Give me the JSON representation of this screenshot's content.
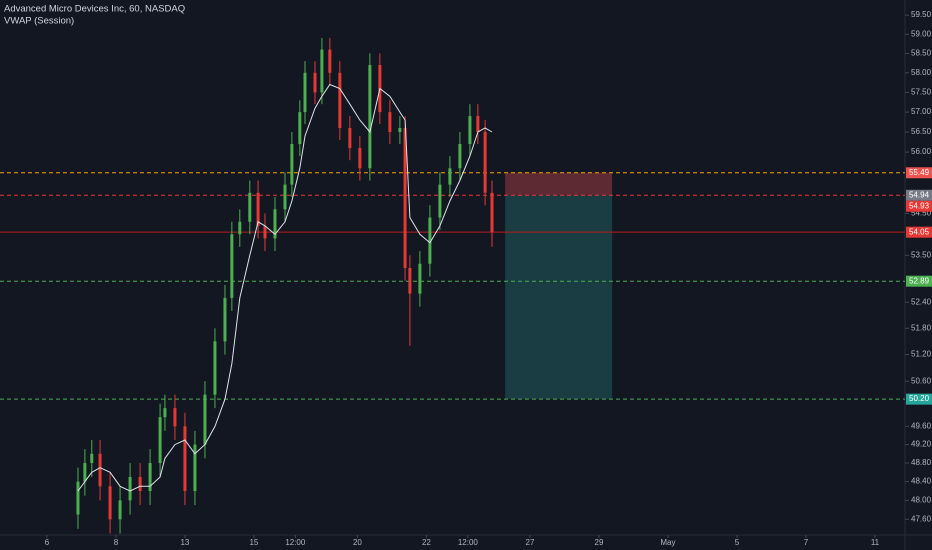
{
  "chart_data": {
    "type": "candlestick",
    "title": "Advanced Micro Devices Inc, 60, NASDAQ",
    "subtitle": "VWAP (Session)",
    "log_scale": true,
    "up_color": "#4caf50",
    "down_color": "#e53935",
    "xlim": [
      -1.36,
      24.87
    ],
    "ylim": [
      47.27,
      59.9
    ],
    "xticks": [
      {
        "value": 0,
        "label": "6"
      },
      {
        "value": 2,
        "label": "8"
      },
      {
        "value": 4,
        "label": "13"
      },
      {
        "value": 6,
        "label": "15"
      },
      {
        "value": 7.2,
        "label": "12:00"
      },
      {
        "value": 9,
        "label": "20"
      },
      {
        "value": 11,
        "label": "22"
      },
      {
        "value": 12.2,
        "label": "12:00"
      },
      {
        "value": 14,
        "label": "27"
      },
      {
        "value": 16,
        "label": "29"
      },
      {
        "value": 18,
        "label": "May"
      },
      {
        "value": 20,
        "label": "5"
      },
      {
        "value": 22,
        "label": "7"
      },
      {
        "value": 24,
        "label": "11"
      }
    ],
    "yticks": [
      {
        "value": 59.5,
        "label": "59.50"
      },
      {
        "value": 59,
        "label": "59.00"
      },
      {
        "value": 58.5,
        "label": "58.50"
      },
      {
        "value": 58,
        "label": "58.00"
      },
      {
        "value": 57.5,
        "label": "57.50"
      },
      {
        "value": 57,
        "label": "57.00"
      },
      {
        "value": 56.5,
        "label": "56.50"
      },
      {
        "value": 56,
        "label": "56.00"
      },
      {
        "value": 54.5,
        "label": "54.50"
      },
      {
        "value": 53.5,
        "label": "53.50"
      },
      {
        "value": 52.4,
        "label": "52.40"
      },
      {
        "value": 51.8,
        "label": "51.80"
      },
      {
        "value": 51.2,
        "label": "51.20"
      },
      {
        "value": 50.6,
        "label": "50.60"
      },
      {
        "value": 49.6,
        "label": "49.60"
      },
      {
        "value": 49.2,
        "label": "49.20"
      },
      {
        "value": 48.8,
        "label": "48.80"
      },
      {
        "value": 48.4,
        "label": "48.40"
      },
      {
        "value": 48,
        "label": "48.00"
      },
      {
        "value": 47.6,
        "label": "47.60"
      }
    ],
    "x": [
      0.9,
      1.1,
      1.3,
      1.54,
      1.83,
      2.12,
      2.41,
      2.7,
      2.99,
      3.28,
      3.42,
      3.71,
      4.0,
      4.29,
      4.58,
      4.87,
      5.16,
      5.36,
      5.59,
      5.88,
      6.12,
      6.32,
      6.61,
      6.9,
      7.1,
      7.33,
      7.48,
      7.77,
      7.97,
      8.2,
      8.49,
      8.78,
      9.07,
      9.36,
      9.65,
      9.94,
      10.23,
      10.38,
      10.52,
      10.81,
      11.1,
      11.39,
      11.68,
      11.97,
      12.26,
      12.49,
      12.7,
      12.9
    ],
    "open": [
      47.7,
      48.4,
      48.8,
      49.0,
      48.3,
      47.6,
      48.0,
      48.5,
      48.2,
      48.8,
      49.8,
      50.0,
      49.6,
      48.2,
      49.2,
      50.3,
      51.5,
      52.5,
      54.0,
      54.3,
      55.0,
      54.2,
      53.9,
      54.6,
      55.2,
      56.2,
      57.0,
      58.0,
      57.5,
      58.6,
      58.0,
      56.6,
      56.1,
      55.6,
      58.2,
      57.0,
      56.5,
      56.6,
      53.2,
      52.6,
      53.3,
      54.4,
      55.2,
      55.6,
      56.2,
      56.9,
      56.5,
      55.0
    ],
    "high": [
      48.7,
      49.1,
      49.3,
      49.3,
      48.6,
      48.3,
      48.8,
      48.8,
      49.1,
      50.1,
      50.3,
      50.3,
      49.9,
      49.5,
      50.6,
      51.8,
      52.8,
      54.3,
      54.6,
      55.3,
      55.3,
      54.5,
      54.9,
      55.5,
      56.5,
      57.3,
      58.3,
      58.3,
      58.9,
      58.9,
      58.3,
      56.9,
      56.4,
      58.5,
      58.5,
      57.3,
      56.9,
      56.9,
      53.5,
      53.6,
      54.7,
      55.5,
      55.9,
      56.5,
      57.2,
      57.2,
      56.8,
      55.3
    ],
    "low": [
      47.4,
      48.1,
      48.5,
      48.0,
      47.3,
      47.3,
      47.7,
      47.9,
      47.9,
      48.5,
      49.5,
      49.3,
      47.9,
      47.9,
      48.9,
      50.0,
      51.2,
      52.2,
      53.7,
      54.0,
      53.9,
      53.6,
      53.6,
      54.3,
      54.9,
      55.9,
      56.7,
      57.2,
      57.2,
      57.7,
      56.3,
      55.8,
      55.3,
      55.3,
      56.7,
      56.2,
      56.2,
      52.9,
      51.4,
      52.3,
      53.0,
      54.1,
      54.9,
      55.3,
      55.9,
      56.2,
      54.7,
      53.7
    ],
    "close": [
      48.4,
      48.8,
      49.0,
      48.3,
      47.6,
      48.0,
      48.5,
      48.2,
      48.8,
      49.8,
      50.0,
      49.6,
      48.2,
      49.2,
      50.3,
      51.5,
      52.5,
      54.0,
      54.3,
      55.0,
      54.2,
      53.9,
      54.6,
      55.2,
      56.2,
      57.0,
      58.0,
      57.5,
      58.6,
      58.0,
      56.6,
      56.1,
      55.6,
      58.2,
      57.0,
      56.5,
      56.6,
      53.2,
      52.6,
      53.3,
      54.4,
      55.2,
      55.6,
      56.2,
      56.9,
      56.5,
      55.0,
      54.05
    ],
    "vwap": {
      "color": "#e0e3eb",
      "values": [
        48.2,
        48.4,
        48.6,
        48.7,
        48.6,
        48.3,
        48.2,
        48.3,
        48.3,
        48.5,
        48.9,
        49.2,
        49.3,
        49.0,
        49.2,
        49.6,
        50.2,
        51.0,
        52.5,
        53.5,
        54.3,
        54.2,
        54.0,
        54.3,
        54.8,
        55.6,
        56.4,
        57.1,
        57.4,
        57.7,
        57.6,
        57.2,
        56.8,
        56.5,
        57.6,
        57.4,
        57.0,
        56.8,
        54.4,
        54.0,
        53.8,
        54.2,
        54.8,
        55.3,
        55.9,
        56.5,
        56.6,
        56.5
      ]
    },
    "levels": [
      {
        "value": 55.49,
        "label": "55.49",
        "color": "#f7a600",
        "tag_color": "#ef5350",
        "style": "dashed"
      },
      {
        "value": 54.94,
        "label": "54.94",
        "color": "#e53935",
        "tag_color": "#787b86",
        "style": "dashed"
      },
      {
        "value": 54.93,
        "label": "54.93",
        "color": "#e53935",
        "tag_color": "#e53935",
        "style": "none"
      },
      {
        "value": 54.05,
        "label": "54.05",
        "color": "#b71c1c",
        "tag_color": "#e53935",
        "style": "solid"
      },
      {
        "value": 52.89,
        "label": "52.89",
        "color": "#4caf50",
        "tag_color": "#4caf50",
        "style": "dashed"
      },
      {
        "value": 50.2,
        "label": "50.20",
        "color": "#4caf50",
        "tag_color": "#26a69a",
        "style": "dashed"
      }
    ],
    "position": {
      "x": [
        13.28,
        16.38
      ],
      "stop": 55.49,
      "entry": 54.94,
      "target": 50.2,
      "stop_color": "#5d2a33",
      "target_color": "#1a3c43"
    }
  }
}
